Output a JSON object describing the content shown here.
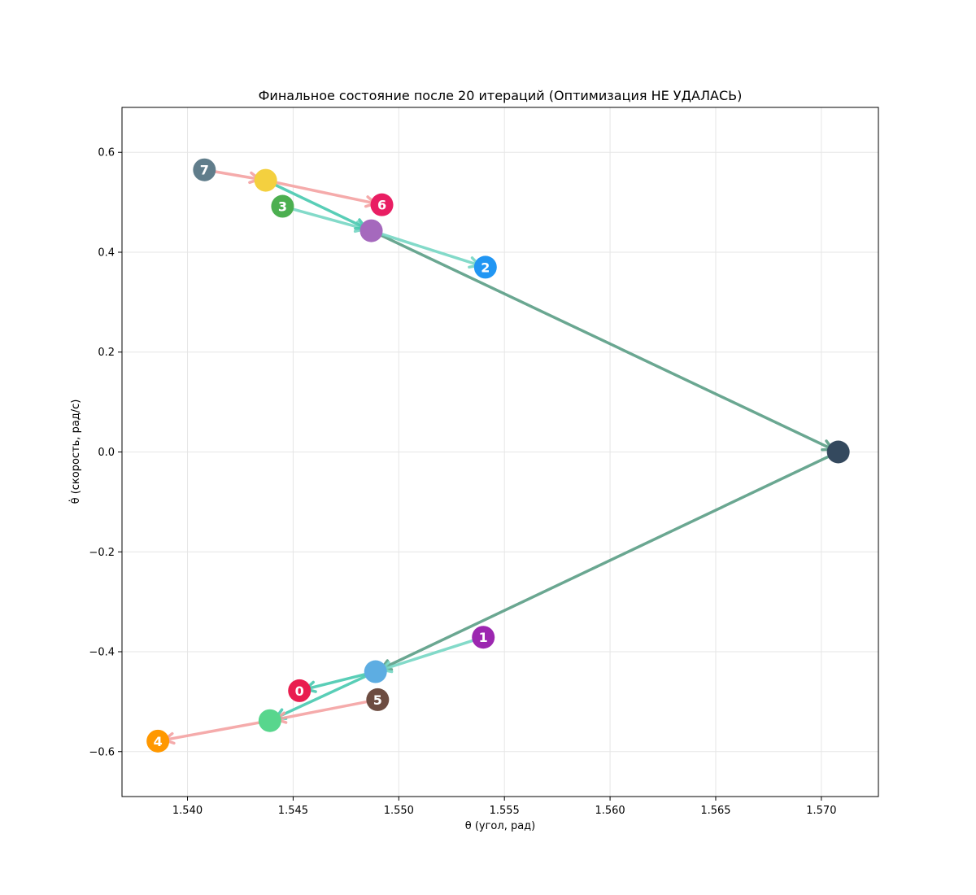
{
  "chart_data": {
    "type": "scatter",
    "title": "Финальное состояние после 20 итераций (Оптимизация НЕ УДАЛАСЬ)",
    "xlabel": "θ (угол, рад)",
    "ylabel": "θ̇ (скорость, рад/с)",
    "xlim": [
      1.5369,
      1.5727
    ],
    "ylim": [
      -0.69,
      0.69
    ],
    "grid": true,
    "x_ticks": [
      {
        "value": 1.54,
        "label": "1.540"
      },
      {
        "value": 1.545,
        "label": "1.545"
      },
      {
        "value": 1.55,
        "label": "1.550"
      },
      {
        "value": 1.555,
        "label": "1.555"
      },
      {
        "value": 1.56,
        "label": "1.560"
      },
      {
        "value": 1.565,
        "label": "1.565"
      },
      {
        "value": 1.57,
        "label": "1.570"
      }
    ],
    "y_ticks": [
      {
        "value": 0.6,
        "label": "0.6"
      },
      {
        "value": 0.4,
        "label": "0.4"
      },
      {
        "value": 0.2,
        "label": "0.2"
      },
      {
        "value": 0.0,
        "label": "0.0"
      },
      {
        "value": -0.2,
        "label": "−0.2"
      },
      {
        "value": -0.4,
        "label": "−0.4"
      },
      {
        "value": -0.6,
        "label": "−0.6"
      }
    ],
    "nodes": [
      {
        "id": "target",
        "x": 1.5708,
        "y": 0.0,
        "color": "#34495e",
        "label": ""
      },
      {
        "id": "hubTop",
        "x": 1.5487,
        "y": 0.443,
        "color": "#a569bd",
        "label": ""
      },
      {
        "id": "hubBot",
        "x": 1.5489,
        "y": -0.44,
        "color": "#5dade2",
        "label": ""
      },
      {
        "id": "midTop",
        "x": 1.5437,
        "y": 0.544,
        "color": "#f4d03f",
        "label": ""
      },
      {
        "id": "midBot",
        "x": 1.5439,
        "y": -0.538,
        "color": "#58d68d",
        "label": ""
      },
      {
        "id": "n0",
        "x": 1.5453,
        "y": -0.478,
        "color": "#e91e4f",
        "label": "0"
      },
      {
        "id": "n1",
        "x": 1.554,
        "y": -0.371,
        "color": "#9c27b0",
        "label": "1"
      },
      {
        "id": "n2",
        "x": 1.5541,
        "y": 0.37,
        "color": "#2196f3",
        "label": "2"
      },
      {
        "id": "n3",
        "x": 1.5445,
        "y": 0.492,
        "color": "#4caf50",
        "label": "3"
      },
      {
        "id": "n4",
        "x": 1.5386,
        "y": -0.579,
        "color": "#ff9800",
        "label": "4"
      },
      {
        "id": "n5",
        "x": 1.549,
        "y": -0.496,
        "color": "#6d4c41",
        "label": "5"
      },
      {
        "id": "n6",
        "x": 1.5492,
        "y": 0.495,
        "color": "#e91e63",
        "label": "6"
      },
      {
        "id": "n7",
        "x": 1.5408,
        "y": 0.565,
        "color": "#607d8b",
        "label": "7"
      }
    ],
    "arrows": [
      {
        "from": "hubTop",
        "to": "target",
        "color": "#5a9e86"
      },
      {
        "from": "target",
        "to": "hubBot",
        "color": "#5a9e86"
      },
      {
        "from": "hubTop",
        "to": "n2",
        "color": "#76d7c4"
      },
      {
        "from": "n3",
        "to": "hubTop",
        "color": "#76d7c4"
      },
      {
        "from": "midTop",
        "to": "hubTop",
        "color": "#48c9b0"
      },
      {
        "from": "n7",
        "to": "midTop",
        "color": "#f5a3a3"
      },
      {
        "from": "midTop",
        "to": "n6",
        "color": "#f5a3a3"
      },
      {
        "from": "n1",
        "to": "hubBot",
        "color": "#76d7c4"
      },
      {
        "from": "hubBot",
        "to": "n0",
        "color": "#48c9b0"
      },
      {
        "from": "hubBot",
        "to": "midBot",
        "color": "#48c9b0"
      },
      {
        "from": "n5",
        "to": "midBot",
        "color": "#f5a3a3"
      },
      {
        "from": "midBot",
        "to": "n4",
        "color": "#f5a3a3"
      }
    ]
  }
}
